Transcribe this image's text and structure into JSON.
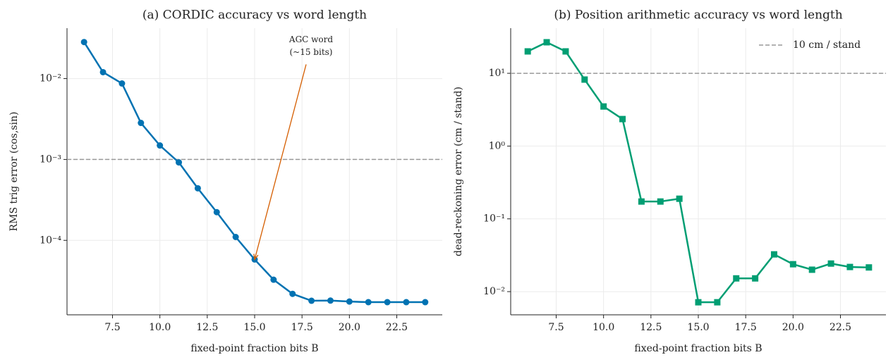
{
  "chart_data": [
    {
      "type": "line",
      "title": "(a) CORDIC accuracy vs word length",
      "xlabel": "fixed-point fraction bits  B",
      "ylabel": "RMS trig error (cos,sin)",
      "x": [
        6,
        7,
        8,
        9,
        10,
        11,
        12,
        13,
        14,
        15,
        16,
        17,
        18,
        19,
        20,
        21,
        22,
        23,
        24
      ],
      "series": [
        {
          "name": "CORDIC",
          "color": "#0072B2",
          "marker": "circle",
          "values": [
            0.0283,
            0.012,
            0.0087,
            0.00283,
            0.00149,
            0.00092,
            0.00044,
            0.000223,
            0.00011,
            5.8e-05,
            3.26e-05,
            2.18e-05,
            1.79e-05,
            1.8e-05,
            1.75e-05,
            1.72e-05,
            1.72e-05,
            1.72e-05,
            1.72e-05
          ]
        }
      ],
      "xlim": [
        5.1,
        24.9
      ],
      "xticks": [
        7.5,
        {
          "value": 10,
          "label": "10.0"
        },
        12.5,
        {
          "value": 15,
          "label": "15.0"
        },
        17.5,
        {
          "value": 20,
          "label": "20.0"
        },
        22.5
      ],
      "ylim": [
        1.2e-05,
        0.042
      ],
      "yscale": "log",
      "yticks": [
        {
          "value": 0.0001,
          "label": "10⁻⁴"
        },
        {
          "value": 0.001,
          "label": "10⁻³"
        },
        {
          "value": 0.01,
          "label": "10⁻²"
        }
      ],
      "grid": true,
      "hline": {
        "y": 0.001,
        "color": "#999999"
      },
      "annotation": {
        "text": [
          "AGC word",
          "(~15 bits)"
        ],
        "x": 15,
        "y": 5.8e-05,
        "color": "#D55E00"
      }
    },
    {
      "type": "line",
      "title": "(b) Position arithmetic accuracy vs word length",
      "xlabel": "fixed-point fraction bits  B",
      "ylabel": "dead-reckoning error (cm / stand)",
      "x": [
        6,
        7,
        8,
        9,
        10,
        11,
        12,
        13,
        14,
        15,
        16,
        17,
        18,
        19,
        20,
        21,
        22,
        23,
        24
      ],
      "series": [
        {
          "name": "position",
          "color": "#009E73",
          "marker": "square",
          "values": [
            20,
            26.7,
            20,
            8.2,
            3.5,
            2.35,
            0.173,
            0.173,
            0.189,
            0.00714,
            0.00714,
            0.0152,
            0.0152,
            0.0325,
            0.0238,
            0.02,
            0.0243,
            0.0218,
            0.0215
          ]
        }
      ],
      "xlim": [
        5.1,
        24.9
      ],
      "xticks": [
        7.5,
        {
          "value": 10,
          "label": "10.0"
        },
        12.5,
        {
          "value": 15,
          "label": "15.0"
        },
        17.5,
        {
          "value": 20,
          "label": "20.0"
        },
        22.5
      ],
      "ylim": [
        0.0048,
        41.7
      ],
      "yscale": "log",
      "yticks": [
        {
          "value": 0.01,
          "label": "10⁻²"
        },
        {
          "value": 0.1,
          "label": "10⁻¹"
        },
        {
          "value": 1,
          "label": "10⁰"
        },
        {
          "value": 10,
          "label": "10¹"
        }
      ],
      "grid": true,
      "hline": {
        "y": 10,
        "color": "#999999",
        "label": "10 cm / stand"
      },
      "legend": "upper right"
    }
  ]
}
